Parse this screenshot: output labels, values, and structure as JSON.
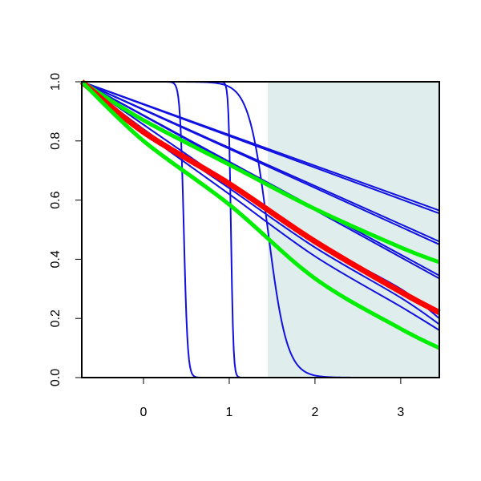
{
  "chart_data": {
    "type": "line",
    "title": "",
    "xlabel": "",
    "ylabel": "",
    "xlim": [
      -0.72,
      3.45
    ],
    "ylim": [
      0,
      1
    ],
    "x_ticks": [
      0,
      1,
      2,
      3
    ],
    "y_ticks": [
      0.0,
      0.2,
      0.4,
      0.6,
      0.8,
      1.0
    ],
    "x_tick_labels": [
      "0",
      "1",
      "2",
      "3"
    ],
    "y_tick_labels": [
      "0.0",
      "0.2",
      "0.4",
      "0.6",
      "0.8",
      "1.0"
    ],
    "shaded_region": {
      "x_start": 1.45,
      "x_end": 3.45,
      "color": "#e0eded"
    },
    "grid": false,
    "colors": {
      "blue": "#1010e0",
      "red": "#ff0000",
      "green": "#00ee00",
      "axis": "#000000"
    },
    "series": [
      {
        "kind": "blue_linear",
        "points": [
          [
            -0.72,
            1.0
          ],
          [
            3.45,
            0.565
          ]
        ]
      },
      {
        "kind": "blue_linear",
        "points": [
          [
            -0.72,
            1.0
          ],
          [
            3.45,
            0.555
          ]
        ]
      },
      {
        "kind": "blue_linear",
        "points": [
          [
            -0.72,
            1.0
          ],
          [
            3.45,
            0.46
          ]
        ]
      },
      {
        "kind": "blue_linear",
        "points": [
          [
            -0.72,
            1.0
          ],
          [
            3.45,
            0.45
          ]
        ]
      },
      {
        "kind": "blue_linear",
        "points": [
          [
            -0.72,
            1.0
          ],
          [
            3.45,
            0.345
          ]
        ]
      },
      {
        "kind": "blue_linear",
        "points": [
          [
            -0.72,
            1.0
          ],
          [
            3.45,
            0.335
          ]
        ]
      },
      {
        "kind": "blue_curve",
        "points": [
          [
            -0.72,
            1.0
          ],
          [
            0.0,
            0.855
          ],
          [
            1.0,
            0.655
          ],
          [
            2.0,
            0.46
          ],
          [
            3.0,
            0.3
          ],
          [
            3.45,
            0.2
          ]
        ]
      },
      {
        "kind": "blue_curve",
        "points": [
          [
            -0.72,
            1.0
          ],
          [
            0.0,
            0.84
          ],
          [
            1.0,
            0.64
          ],
          [
            2.0,
            0.44
          ],
          [
            3.0,
            0.27
          ],
          [
            3.45,
            0.18
          ]
        ]
      },
      {
        "kind": "blue_curve",
        "points": [
          [
            -0.72,
            1.0
          ],
          [
            0.0,
            0.83
          ],
          [
            1.0,
            0.62
          ],
          [
            2.0,
            0.41
          ],
          [
            3.0,
            0.24
          ],
          [
            3.45,
            0.16
          ]
        ]
      },
      {
        "kind": "blue_step",
        "center": 0.47,
        "steepness": 45
      },
      {
        "kind": "blue_step",
        "center": 1.02,
        "steepness": 70
      },
      {
        "kind": "blue_step",
        "center": 1.45,
        "steepness": 9
      },
      {
        "kind": "green_upper",
        "points": [
          [
            -0.72,
            1.0
          ],
          [
            0.0,
            0.87
          ],
          [
            1.0,
            0.72
          ],
          [
            2.0,
            0.57
          ],
          [
            3.0,
            0.44
          ],
          [
            3.45,
            0.39
          ]
        ]
      },
      {
        "kind": "red",
        "points": [
          [
            -0.72,
            1.0
          ],
          [
            0.0,
            0.83
          ],
          [
            1.0,
            0.655
          ],
          [
            2.0,
            0.46
          ],
          [
            3.0,
            0.29
          ],
          [
            3.45,
            0.22
          ]
        ]
      },
      {
        "kind": "green_lower",
        "points": [
          [
            -0.72,
            1.0
          ],
          [
            0.0,
            0.8
          ],
          [
            1.0,
            0.585
          ],
          [
            2.0,
            0.335
          ],
          [
            3.0,
            0.165
          ],
          [
            3.45,
            0.1
          ]
        ]
      }
    ]
  }
}
